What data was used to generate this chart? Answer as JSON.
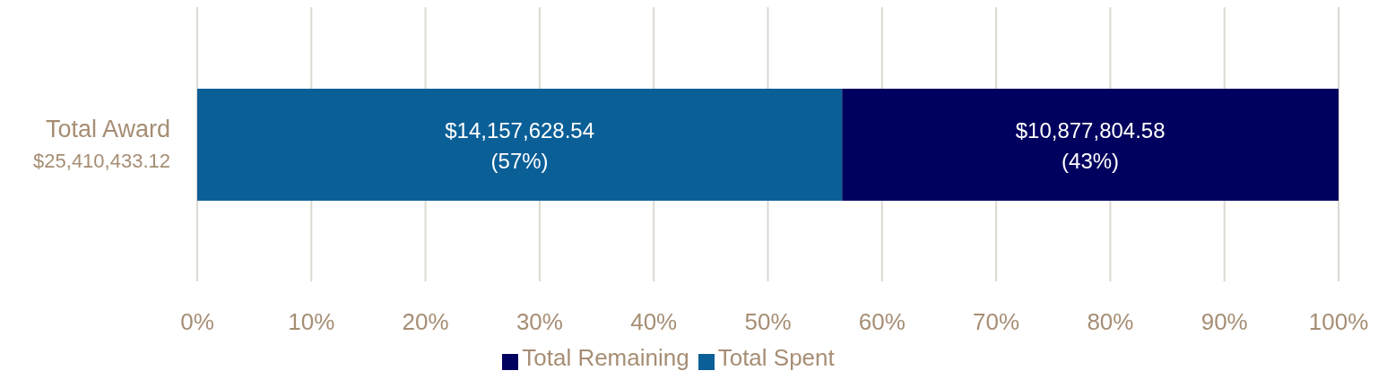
{
  "chart_data": {
    "type": "bar",
    "orientation": "horizontal",
    "stacked": true,
    "categories": [
      "Total Award\n$25,410,433.12"
    ],
    "series": [
      {
        "name": "Total Spent",
        "color": "#0b5f97",
        "values": [
          56.5
        ],
        "value_labels": [
          "$14,157,628.54\n(57%)"
        ]
      },
      {
        "name": "Total Remaining",
        "color": "#00005f",
        "values": [
          43.5
        ],
        "value_labels": [
          "$10,877,804.58\n(43%)"
        ]
      }
    ],
    "xlim": [
      0,
      100
    ],
    "xticks": [
      {
        "value": 0,
        "label": "0%"
      },
      {
        "value": 10,
        "label": "10%"
      },
      {
        "value": 20,
        "label": "20%"
      },
      {
        "value": 30,
        "label": "30%"
      },
      {
        "value": 40,
        "label": "40%"
      },
      {
        "value": 50,
        "label": "50%"
      },
      {
        "value": 60,
        "label": "60%"
      },
      {
        "value": 70,
        "label": "70%"
      },
      {
        "value": 80,
        "label": "80%"
      },
      {
        "value": 90,
        "label": "90%"
      },
      {
        "value": 100,
        "label": "100%"
      }
    ],
    "grid": "x",
    "legend": "bottom"
  }
}
